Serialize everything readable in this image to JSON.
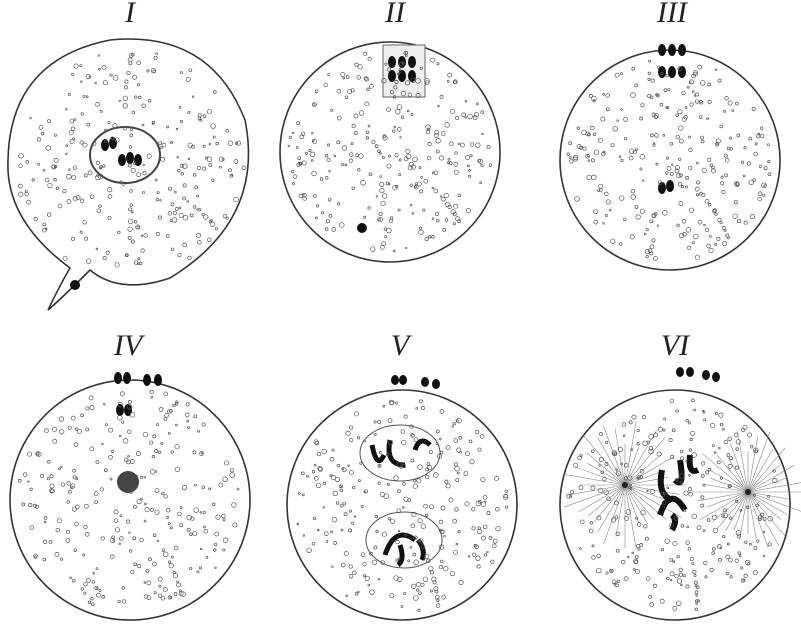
{
  "panels": [
    {
      "label": "I"
    },
    {
      "label": "II"
    },
    {
      "label": "III"
    },
    {
      "label": "IV"
    },
    {
      "label": "V"
    },
    {
      "label": "VI"
    }
  ]
}
